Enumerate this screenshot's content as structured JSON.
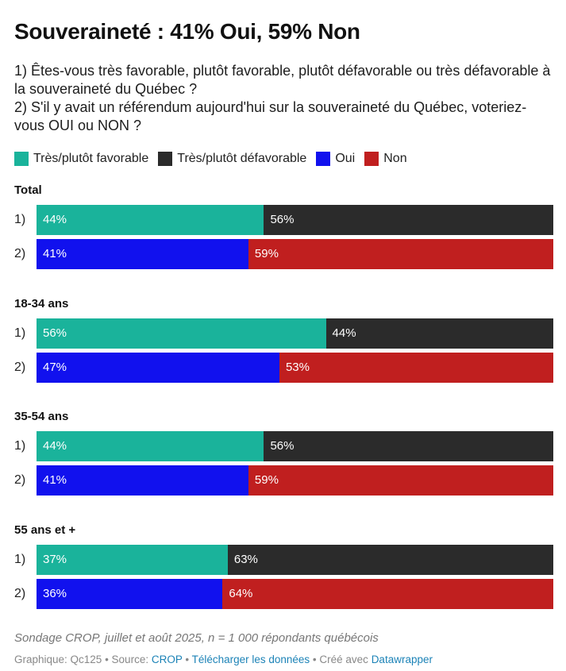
{
  "title": "Souveraineté : 41% Oui, 59% Non",
  "subtitle": [
    "1) Êtes-vous très favorable, plutôt favorable, plutôt défavorable ou très défavorable à la souveraineté du Québec ?",
    "2) S'il y avait un référendum aujourd'hui sur la souveraineté du Québec, voteriez-vous OUI ou NON ?"
  ],
  "legend": [
    {
      "label": "Très/plutôt favorable",
      "color": "#1ab39b"
    },
    {
      "label": "Très/plutôt défavorable",
      "color": "#2b2b2b"
    },
    {
      "label": "Oui",
      "color": "#1111ee"
    },
    {
      "label": "Non",
      "color": "#c01f1f"
    }
  ],
  "chart_data": {
    "type": "bar",
    "stacked": true,
    "orientation": "horizontal",
    "unit": "%",
    "groups": [
      {
        "name": "Total",
        "rows": [
          {
            "label": "1)",
            "segments": [
              {
                "series": "Très/plutôt favorable",
                "value": 44,
                "text": "44%"
              },
              {
                "series": "Très/plutôt défavorable",
                "value": 56,
                "text": "56%"
              }
            ]
          },
          {
            "label": "2)",
            "segments": [
              {
                "series": "Oui",
                "value": 41,
                "text": "41%"
              },
              {
                "series": "Non",
                "value": 59,
                "text": "59%"
              }
            ]
          }
        ]
      },
      {
        "name": "18-34 ans",
        "rows": [
          {
            "label": "1)",
            "segments": [
              {
                "series": "Très/plutôt favorable",
                "value": 56,
                "text": "56%"
              },
              {
                "series": "Très/plutôt défavorable",
                "value": 44,
                "text": "44%"
              }
            ]
          },
          {
            "label": "2)",
            "segments": [
              {
                "series": "Oui",
                "value": 47,
                "text": "47%"
              },
              {
                "series": "Non",
                "value": 53,
                "text": "53%"
              }
            ]
          }
        ]
      },
      {
        "name": "35-54 ans",
        "rows": [
          {
            "label": "1)",
            "segments": [
              {
                "series": "Très/plutôt favorable",
                "value": 44,
                "text": "44%"
              },
              {
                "series": "Très/plutôt défavorable",
                "value": 56,
                "text": "56%"
              }
            ]
          },
          {
            "label": "2)",
            "segments": [
              {
                "series": "Oui",
                "value": 41,
                "text": "41%"
              },
              {
                "series": "Non",
                "value": 59,
                "text": "59%"
              }
            ]
          }
        ]
      },
      {
        "name": "55 ans et +",
        "rows": [
          {
            "label": "1)",
            "segments": [
              {
                "series": "Très/plutôt favorable",
                "value": 37,
                "text": "37%"
              },
              {
                "series": "Très/plutôt défavorable",
                "value": 63,
                "text": "63%"
              }
            ]
          },
          {
            "label": "2)",
            "segments": [
              {
                "series": "Oui",
                "value": 36,
                "text": "36%"
              },
              {
                "series": "Non",
                "value": 64,
                "text": "64%"
              }
            ]
          }
        ]
      }
    ]
  },
  "note": "Sondage CROP, juillet et août 2025, n = 1 000 répondants québécois",
  "footer": {
    "prefix": "Graphique: Qc125 • Source: ",
    "source": "CROP",
    "sep1": " • ",
    "download": "Télécharger les données",
    "sep2": " • Créé avec ",
    "tool": "Datawrapper"
  }
}
